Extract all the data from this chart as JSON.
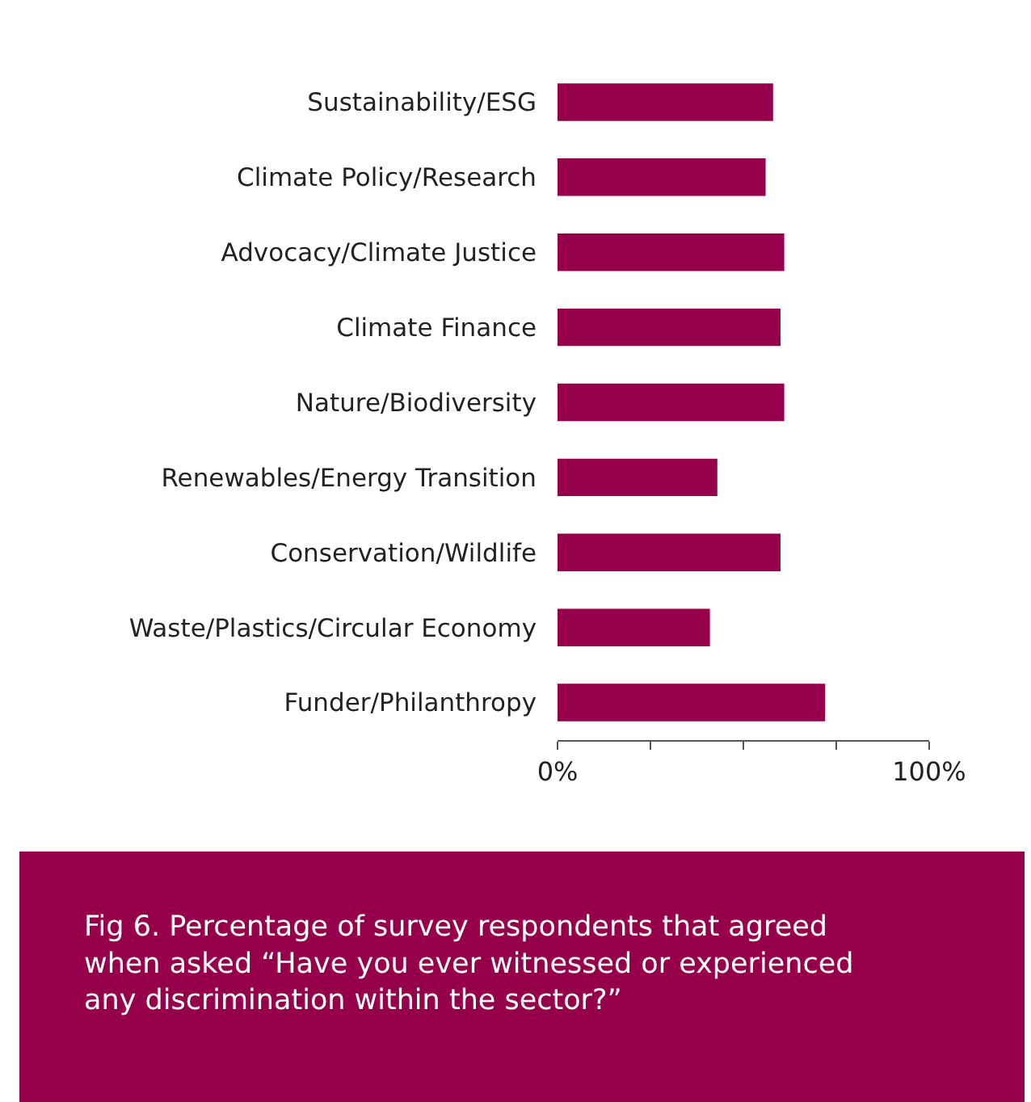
{
  "chart_data": {
    "type": "bar",
    "orientation": "horizontal",
    "categories": [
      "Sustainability/ESG",
      "Climate Policy/Research",
      "Advocacy/Climate Justice",
      "Climate Finance",
      "Nature/Biodiversity",
      "Renewables/Energy Transition",
      "Conservation/Wildlife",
      "Waste/Plastics/Circular Economy",
      "Funder/Philanthropy"
    ],
    "values": [
      58,
      56,
      61,
      60,
      61,
      43,
      60,
      41,
      72
    ],
    "color": "#96004a",
    "xlim": [
      0,
      100
    ],
    "xticks": [
      {
        "value": 0,
        "label": "0%"
      },
      {
        "value": 25,
        "label": null
      },
      {
        "value": 50,
        "label": null
      },
      {
        "value": 75,
        "label": null
      },
      {
        "value": 100,
        "label": "100%"
      }
    ],
    "legend": false,
    "annotations": [
      "Fig 6. Percentage of survey respondents that agreed when asked “Have you ever witnessed or experienced any discrimination within the sector?”"
    ]
  }
}
